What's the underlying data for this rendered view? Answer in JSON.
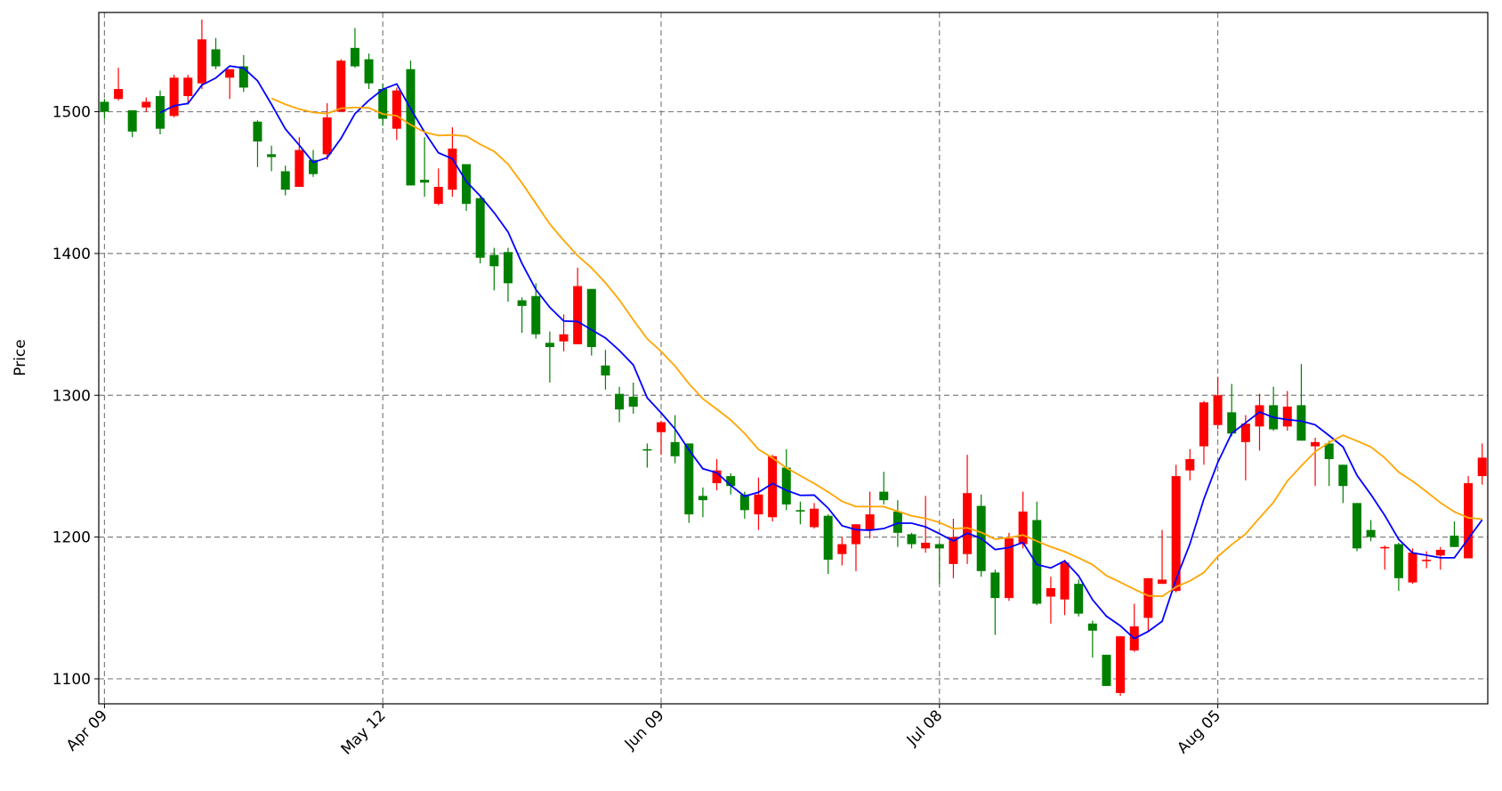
{
  "chart_data": {
    "type": "candlestick",
    "y_label": "Price",
    "xlim": [
      -0.41,
      99.4
    ],
    "xticks": [
      {
        "value": 0,
        "label": "Apr 09"
      },
      {
        "value": 20,
        "label": "May 12"
      },
      {
        "value": 40,
        "label": "Jun 09"
      },
      {
        "value": 60,
        "label": "Jul 08"
      },
      {
        "value": 80,
        "label": "Aug 05"
      }
    ],
    "ylim": [
      1082.4,
      1570
    ],
    "yticks": [
      1100,
      1200,
      1300,
      1400,
      1500
    ],
    "grid": true,
    "up_color": "#ff0000",
    "down_color": "#008000",
    "open": [
      1507,
      1509,
      1501,
      1503,
      1511,
      1497,
      1511,
      1520,
      1544,
      1524,
      1532,
      1493,
      1470,
      1458,
      1447,
      1466,
      1470,
      1500,
      1545,
      1537,
      1516,
      1488,
      1530,
      1452,
      1435,
      1445,
      1463,
      1439,
      1399,
      1401,
      1367,
      1370,
      1337,
      1338,
      1336,
      1375,
      1321,
      1301,
      1299,
      1262,
      1274,
      1267,
      1266,
      1229,
      1238,
      1243,
      1230,
      1216,
      1214,
      1249,
      1219,
      1207,
      1215,
      1188,
      1195,
      1205,
      1232,
      1218,
      1202,
      1192,
      1195,
      1181,
      1188,
      1222,
      1175,
      1157,
      1195,
      1212,
      1158,
      1156,
      1167,
      1139,
      1117,
      1090,
      1120,
      1143,
      1167,
      1162,
      1247,
      1264,
      1279,
      1288,
      1267,
      1278,
      1293,
      1278,
      1293,
      1264,
      1266,
      1251,
      1224,
      1205,
      1192,
      1195,
      1168,
      1183,
      1187,
      1201,
      1185,
      1243
    ],
    "high": [
      1509,
      1531,
      1501,
      1510,
      1515,
      1526,
      1526,
      1565,
      1552,
      1530,
      1540,
      1494,
      1476,
      1462,
      1482,
      1473,
      1506,
      1537,
      1559,
      1541,
      1520,
      1517,
      1536,
      1482,
      1460,
      1489,
      1463,
      1441,
      1404,
      1404,
      1369,
      1379,
      1345,
      1357,
      1390,
      1375,
      1332,
      1306,
      1309,
      1266,
      1282,
      1286,
      1266,
      1235,
      1255,
      1245,
      1232,
      1242,
      1258,
      1262,
      1225,
      1224,
      1216,
      1200,
      1209,
      1232,
      1246,
      1226,
      1203,
      1229,
      1196,
      1213,
      1258,
      1230,
      1177,
      1203,
      1232,
      1225,
      1172,
      1184,
      1170,
      1141,
      1117,
      1130,
      1153,
      1171,
      1205,
      1251,
      1262,
      1296,
      1313,
      1308,
      1286,
      1301,
      1306,
      1303,
      1322,
      1270,
      1268,
      1251,
      1224,
      1212,
      1194,
      1196,
      1192,
      1190,
      1193,
      1211,
      1243,
      1266
    ],
    "low": [
      1495,
      1508,
      1482,
      1500,
      1484,
      1496,
      1505,
      1516,
      1530,
      1509,
      1514,
      1461,
      1458,
      1441,
      1447,
      1454,
      1466,
      1500,
      1531,
      1516,
      1490,
      1480,
      1448,
      1440,
      1434,
      1440,
      1430,
      1393,
      1374,
      1366,
      1344,
      1340,
      1309,
      1331,
      1336,
      1328,
      1304,
      1281,
      1287,
      1249,
      1258,
      1252,
      1210,
      1214,
      1233,
      1230,
      1213,
      1205,
      1211,
      1219,
      1209,
      1206,
      1174,
      1180,
      1176,
      1199,
      1223,
      1193,
      1192,
      1189,
      1167,
      1171,
      1181,
      1172,
      1131,
      1155,
      1192,
      1152,
      1139,
      1145,
      1144,
      1115,
      1095,
      1088,
      1119,
      1133,
      1167,
      1161,
      1240,
      1251,
      1276,
      1271,
      1240,
      1261,
      1275,
      1275,
      1268,
      1236,
      1236,
      1224,
      1190,
      1197,
      1177,
      1162,
      1167,
      1178,
      1177,
      1193,
      1185,
      1237
    ],
    "close": [
      1500,
      1516,
      1486,
      1507,
      1488,
      1524,
      1524,
      1551,
      1532,
      1530,
      1517,
      1479,
      1468,
      1445,
      1473,
      1456,
      1496,
      1536,
      1532,
      1520,
      1495,
      1515,
      1448,
      1450,
      1447,
      1474,
      1435,
      1397,
      1391,
      1379,
      1363,
      1343,
      1334,
      1343,
      1377,
      1334,
      1314,
      1290,
      1292,
      1261,
      1281,
      1257,
      1216,
      1226,
      1247,
      1236,
      1219,
      1230,
      1257,
      1223,
      1218,
      1220,
      1184,
      1195,
      1209,
      1216,
      1226,
      1203,
      1195,
      1196,
      1192,
      1200,
      1231,
      1176,
      1157,
      1199,
      1218,
      1153,
      1164,
      1182,
      1146,
      1134,
      1095,
      1130,
      1137,
      1171,
      1170,
      1243,
      1255,
      1295,
      1300,
      1273,
      1280,
      1293,
      1276,
      1292,
      1268,
      1267,
      1255,
      1236,
      1192,
      1200,
      1193,
      1171,
      1189,
      1184,
      1191,
      1193,
      1238,
      1256
    ],
    "lines": [
      {
        "color": "#0000ff",
        "values": [
          null,
          null,
          null,
          null,
          1499.4,
          1504.2,
          1505.8,
          1518.8,
          1523.8,
          1532.2,
          1530.8,
          1521.8,
          1505.2,
          1487.8,
          1476.4,
          1464.2,
          1467.6,
          1481.2,
          1498.6,
          1508,
          1515.8,
          1519.6,
          1502,
          1485.6,
          1471,
          1466.8,
          1450.8,
          1440.6,
          1428.8,
          1415.2,
          1393,
          1374.6,
          1362,
          1352.4,
          1352,
          1346.2,
          1340.4,
          1331.6,
          1321.4,
          1298.2,
          1287.6,
          1276.2,
          1261.4,
          1248.2,
          1245.4,
          1236.4,
          1228.8,
          1231.6,
          1237.8,
          1233,
          1229.4,
          1229.6,
          1220.4,
          1208,
          1205.2,
          1204.8,
          1206,
          1209.8,
          1209.8,
          1207.2,
          1202.4,
          1197.2,
          1202.8,
          1199,
          1191.2,
          1192.6,
          1196.2,
          1180.6,
          1178.2,
          1183.2,
          1172.6,
          1155.8,
          1144.2,
          1137.4,
          1128.4,
          1133.4,
          1140.6,
          1170.2,
          1195.2,
          1226.8,
          1252.6,
          1273.2,
          1280.6,
          1288.2,
          1284.4,
          1282.8,
          1281.8,
          1279.2,
          1271.6,
          1263.6,
          1243.6,
          1230,
          1215.2,
          1198.4,
          1188.8,
          1187.2,
          1185.4,
          1185.4,
          1198.8,
          1212.2
        ]
      },
      {
        "color": "#ffa500",
        "values": [
          null,
          null,
          null,
          null,
          null,
          null,
          null,
          null,
          null,
          null,
          null,
          null,
          1509.4,
          1505.2,
          1501.8,
          1499.5,
          1498.7,
          1502.4,
          1503,
          1502.7,
          1498.4,
          1497.1,
          1490.8,
          1485.6,
          1483.2,
          1483.6,
          1482.8,
          1477,
          1472,
          1463,
          1449.7,
          1435.2,
          1420.8,
          1409.2,
          1398.5,
          1389.8,
          1379.3,
          1367.2,
          1353.2,
          1339.8,
          1330.9,
          1320.6,
          1308.1,
          1297.5,
          1290.2,
          1282.6,
          1273.1,
          1261.8,
          1255.8,
          1248.8,
          1243.3,
          1237.8,
          1231.8,
          1225.2,
          1221.5,
          1221.5,
          1221.5,
          1218.2,
          1215,
          1213.2,
          1210.3,
          1205.9,
          1206.5,
          1203.3,
          1198.5,
          1199.6,
          1201.4,
          1197.1,
          1193.1,
          1189.7,
          1185.3,
          1180.6,
          1172.8,
          1168.1,
          1163.2,
          1158.6,
          1158.2,
          1164.8,
          1169.1,
          1175,
          1186.3,
          1194.7,
          1202.2,
          1213.5,
          1224.5,
          1239.6,
          1250.2,
          1260.2,
          1266.7,
          1271.8,
          1267.8,
          1263.6,
          1255.8,
          1245.8,
          1239.4,
          1232,
          1224.2,
          1217.8,
          1213.6,
          1212.7
        ]
      }
    ]
  }
}
